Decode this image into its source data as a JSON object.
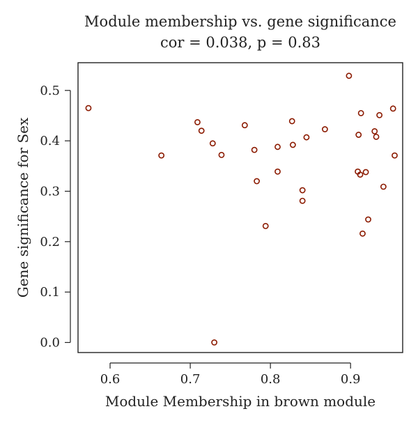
{
  "chart_data": {
    "type": "scatter",
    "title": "Module membership vs. gene significance",
    "subtitle": "cor = 0.038, p = 0.83",
    "xlabel": "Module Membership in brown module",
    "ylabel": "Gene significance for Sex",
    "xlim": [
      0.56,
      0.965
    ],
    "ylim": [
      -0.02,
      0.555
    ],
    "xticks": [
      0.6,
      0.7,
      0.8,
      0.9
    ],
    "xtick_labels": [
      "0.6",
      "0.7",
      "0.8",
      "0.9"
    ],
    "yticks": [
      0.0,
      0.1,
      0.2,
      0.3,
      0.4,
      0.5
    ],
    "ytick_labels": [
      "0.0",
      "0.1",
      "0.2",
      "0.3",
      "0.4",
      "0.5"
    ],
    "grid": false,
    "point_color": "#8b1a00",
    "x": [
      0.573,
      0.664,
      0.709,
      0.714,
      0.728,
      0.73,
      0.739,
      0.768,
      0.78,
      0.783,
      0.794,
      0.809,
      0.809,
      0.827,
      0.828,
      0.84,
      0.84,
      0.845,
      0.868,
      0.898,
      0.909,
      0.91,
      0.912,
      0.913,
      0.915,
      0.919,
      0.922,
      0.93,
      0.932,
      0.936,
      0.941,
      0.953,
      0.955
    ],
    "y": [
      0.465,
      0.371,
      0.437,
      0.42,
      0.395,
      0.0,
      0.372,
      0.431,
      0.382,
      0.32,
      0.231,
      0.388,
      0.339,
      0.439,
      0.392,
      0.302,
      0.281,
      0.407,
      0.423,
      0.529,
      0.339,
      0.412,
      0.333,
      0.455,
      0.216,
      0.338,
      0.244,
      0.419,
      0.408,
      0.451,
      0.309,
      0.464,
      0.371
    ]
  }
}
